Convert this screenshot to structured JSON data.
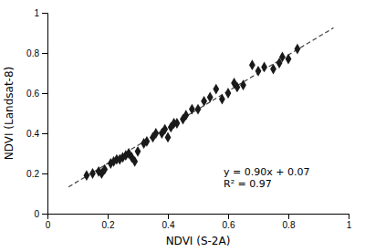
{
  "chart_data": {
    "type": "scatter",
    "xlabel": "NDVI (S-2A)",
    "ylabel": "NDVI (Landsat-8)",
    "xlim": [
      0,
      1
    ],
    "ylim": [
      0,
      1
    ],
    "xticks": [
      0,
      0.2,
      0.4,
      0.6,
      0.8,
      1
    ],
    "yticks": [
      0,
      0.2,
      0.4,
      0.6,
      0.8,
      1
    ],
    "series": [
      {
        "type": "scatter",
        "color": "#1a1a1a",
        "marker": "diamond",
        "x": [
          0.13,
          0.15,
          0.17,
          0.18,
          0.19,
          0.21,
          0.22,
          0.23,
          0.24,
          0.25,
          0.26,
          0.27,
          0.28,
          0.29,
          0.3,
          0.32,
          0.33,
          0.35,
          0.36,
          0.38,
          0.39,
          0.4,
          0.41,
          0.42,
          0.43,
          0.45,
          0.46,
          0.48,
          0.5,
          0.52,
          0.54,
          0.56,
          0.58,
          0.6,
          0.62,
          0.63,
          0.65,
          0.68,
          0.7,
          0.72,
          0.75,
          0.77,
          0.78,
          0.8,
          0.83
        ],
        "values": [
          0.19,
          0.2,
          0.21,
          0.2,
          0.22,
          0.25,
          0.26,
          0.27,
          0.27,
          0.28,
          0.29,
          0.3,
          0.28,
          0.26,
          0.31,
          0.35,
          0.36,
          0.38,
          0.4,
          0.4,
          0.42,
          0.38,
          0.43,
          0.45,
          0.45,
          0.47,
          0.49,
          0.52,
          0.52,
          0.56,
          0.58,
          0.62,
          0.57,
          0.6,
          0.65,
          0.63,
          0.64,
          0.74,
          0.71,
          0.73,
          0.72,
          0.75,
          0.78,
          0.77,
          0.82
        ]
      },
      {
        "type": "line",
        "color": "#444444",
        "line_style": "dashed",
        "x": [
          0.07,
          0.95
        ],
        "values": [
          0.133,
          0.925
        ]
      }
    ],
    "annotations": [
      "y = 0.90x + 0.07",
      "R² = 0.97"
    ]
  }
}
